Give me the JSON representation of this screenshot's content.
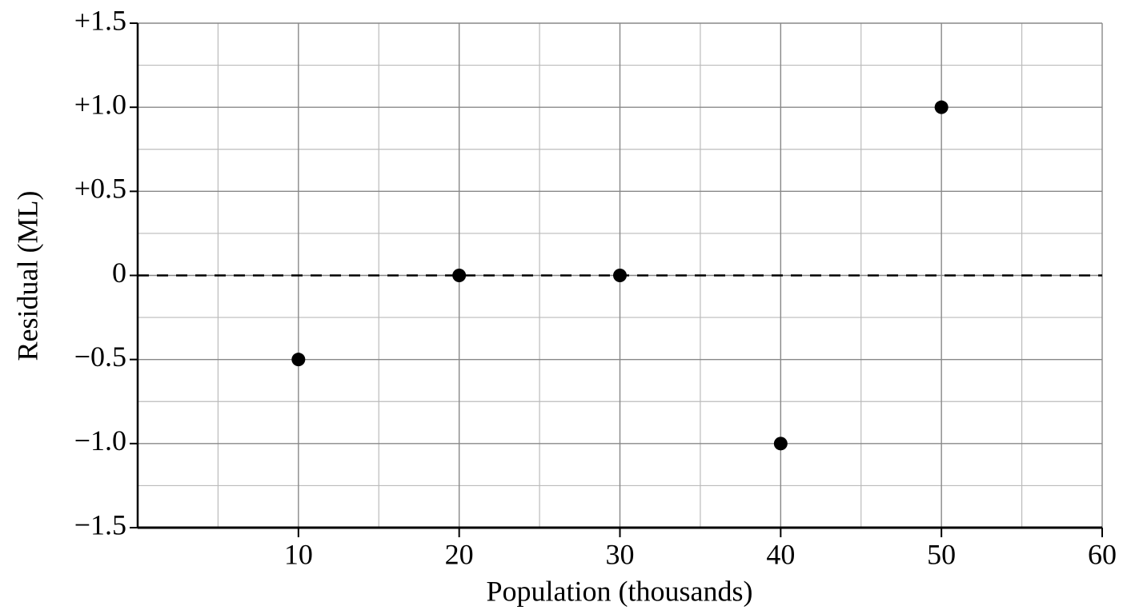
{
  "chart_data": {
    "type": "scatter",
    "x_label": "Population (thousands)",
    "y_label": "Residual (ML)",
    "series": [
      {
        "name": null,
        "color": "#000000",
        "x": [
          10,
          20,
          30,
          40,
          50
        ],
        "values": [
          -0.5,
          0,
          0,
          -1.0,
          1.0
        ]
      }
    ],
    "xlim": [
      0,
      60
    ],
    "xticks": [
      10,
      20,
      30,
      40,
      50,
      60
    ],
    "ylim": [
      -1.5,
      1.5
    ],
    "yticks": [
      {
        "value": -1.5,
        "label": "−1.5"
      },
      {
        "value": -1.0,
        "label": "−1.0"
      },
      {
        "value": -0.5,
        "label": "−0.5"
      },
      0,
      {
        "value": 0.5,
        "label": "+0.5"
      },
      {
        "value": 1.0,
        "label": "+1.0"
      },
      {
        "value": 1.5,
        "label": "+1.5"
      }
    ],
    "grid": true,
    "minor_grid": true,
    "hline": {
      "y": 0,
      "style": "dashed"
    }
  }
}
